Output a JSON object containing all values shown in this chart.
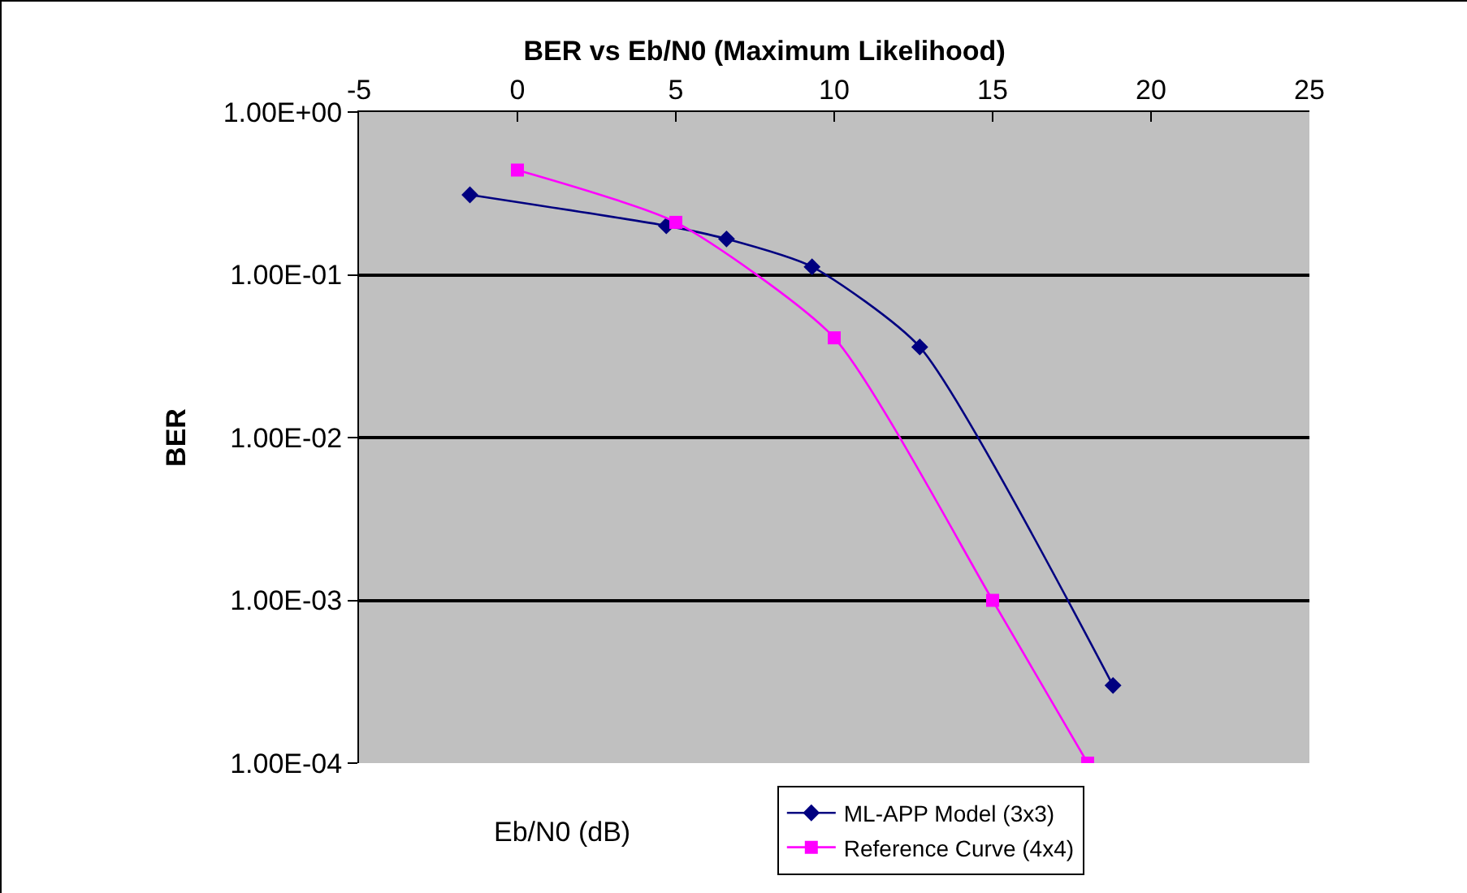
{
  "chart_data": {
    "type": "line",
    "title": "BER vs Eb/N0 (Maximum Likelihood)",
    "xlabel": "Eb/N0 (dB)",
    "ylabel": "BER",
    "log": "y",
    "grid": "y",
    "legend": "bottom right",
    "xlim": [
      -5,
      25
    ],
    "xticks": [
      -5,
      0,
      5,
      10,
      15,
      20,
      25
    ],
    "ylim": [
      0.0001,
      1
    ],
    "yticks": [
      {
        "value": 1,
        "label": "1.00E+00"
      },
      {
        "value": 0.1,
        "label": "1.00E-01"
      },
      {
        "value": 0.01,
        "label": "1.00E-02"
      },
      {
        "value": 0.001,
        "label": "1.00E-03"
      },
      {
        "value": 0.0001,
        "label": "1.00E-04"
      }
    ],
    "series": [
      {
        "name": "ML-APP Model (3x3)",
        "color": "#000080",
        "marker": "diamond",
        "x": [
          -1.5,
          4.7,
          6.6,
          9.3,
          12.7,
          18.8
        ],
        "values": [
          0.31,
          0.2,
          0.166,
          0.112,
          0.036,
          0.0003
        ]
      },
      {
        "name": "Reference Curve (4x4)",
        "color": "#ff00ff",
        "marker": "square",
        "x": [
          0,
          5,
          10,
          15,
          18
        ],
        "values": [
          0.44,
          0.21,
          0.041,
          0.001,
          0.0001
        ]
      }
    ]
  }
}
